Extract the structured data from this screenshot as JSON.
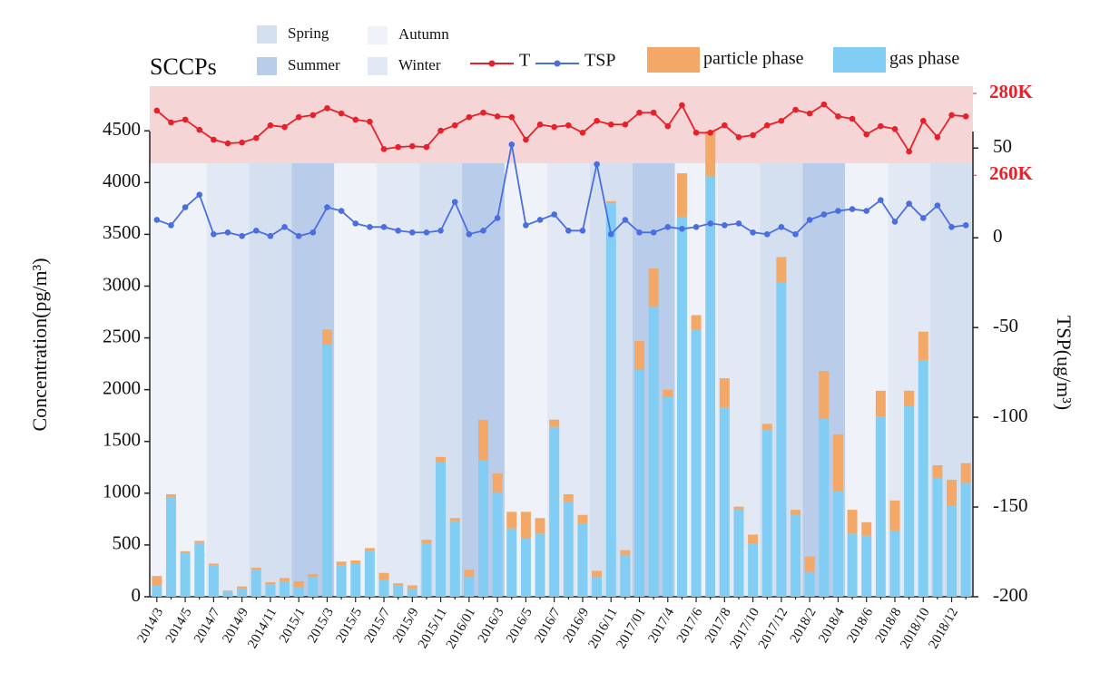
{
  "chart_data": {
    "type": "bar",
    "title": "SCCPs",
    "y_label": "Concentration(pg/m³)",
    "y2_label": "TSP(ug/m³)",
    "categories": [
      "2014/3",
      null,
      "2014/5",
      null,
      "2014/7",
      null,
      "2014/9",
      null,
      "2014/11",
      null,
      "2015/1",
      null,
      "2015/3",
      null,
      "2015/5",
      null,
      "2015/7",
      null,
      "2015/9",
      null,
      "2015/11",
      null,
      "2016/01",
      null,
      "2016/3",
      null,
      "2016/5",
      null,
      "2016/7",
      null,
      "2016/9",
      null,
      "2016/11",
      null,
      "2017/01",
      null,
      "2017/4",
      null,
      "2017/6",
      null,
      "2017/8",
      null,
      "2017/10",
      null,
      "2017/12",
      null,
      "2018/2",
      null,
      "2018/4",
      null,
      "2018/6",
      null,
      "2018/8",
      null,
      "2018/10",
      null,
      "2018/12",
      null
    ],
    "series": [
      {
        "name": "T",
        "type": "line",
        "axis": "y3",
        "color": "#e8202a",
        "values": [
          275.8,
          272.9,
          273.6,
          271.1,
          268.7,
          267.8,
          268.0,
          269.1,
          272.2,
          271.8,
          274.2,
          274.7,
          276.4,
          275.1,
          273.6,
          273.1,
          266.4,
          266.9,
          267.1,
          266.9,
          270.9,
          272.2,
          274.2,
          275.3,
          274.4,
          274.2,
          268.7,
          272.4,
          271.8,
          272.2,
          270.4,
          273.3,
          272.4,
          272.4,
          275.3,
          275.3,
          272.0,
          277.1,
          270.4,
          270.4,
          272.2,
          269.3,
          269.8,
          272.2,
          273.3,
          276.0,
          275.1,
          277.3,
          274.4,
          273.8,
          270.0,
          272.0,
          271.3,
          265.8,
          273.3,
          269.3,
          274.7,
          274.4
        ]
      },
      {
        "name": "TSP",
        "type": "line",
        "axis": "y2",
        "color": "#4a6ee0",
        "values": [
          10,
          7,
          17,
          24,
          2,
          3,
          1,
          4,
          1,
          6,
          1,
          3,
          17,
          15,
          8,
          6,
          6,
          4,
          3,
          3,
          4,
          20,
          2,
          4,
          11,
          52,
          7,
          10,
          13,
          4,
          4,
          41,
          2,
          10,
          3,
          3,
          6,
          5,
          6,
          8,
          7,
          8,
          3,
          2,
          6,
          2,
          10,
          13,
          15,
          16,
          15,
          21,
          9,
          19,
          11,
          18,
          6,
          7
        ]
      },
      {
        "name": "particle phase",
        "type": "bar",
        "color": "#f3a867",
        "values": [
          90,
          30,
          20,
          20,
          20,
          10,
          20,
          20,
          20,
          30,
          60,
          30,
          140,
          40,
          30,
          30,
          70,
          20,
          30,
          40,
          50,
          30,
          70,
          390,
          180,
          160,
          260,
          150,
          70,
          70,
          80,
          60,
          20,
          50,
          280,
          370,
          70,
          420,
          140,
          440,
          280,
          30,
          90,
          60,
          240,
          50,
          150,
          460,
          550,
          230,
          130,
          250,
          290,
          150,
          280,
          120,
          250,
          190
        ]
      },
      {
        "name": "gas phase",
        "type": "bar",
        "color": "#82cdf3",
        "values": [
          110,
          960,
          420,
          520,
          300,
          50,
          80,
          260,
          120,
          150,
          90,
          190,
          2440,
          300,
          320,
          440,
          160,
          110,
          80,
          510,
          1300,
          730,
          190,
          1320,
          1010,
          660,
          560,
          610,
          1640,
          920,
          710,
          190,
          3800,
          400,
          2190,
          2800,
          1930,
          3670,
          2580,
          4060,
          1830,
          840,
          510,
          1610,
          3040,
          790,
          240,
          1720,
          1020,
          610,
          590,
          1740,
          640,
          1840,
          2280,
          1150,
          880,
          1100
        ]
      }
    ],
    "seasons": [
      {
        "name": "Spring",
        "color": "#d4e0f0"
      },
      {
        "name": "Summer",
        "color": "#b9cdea"
      },
      {
        "name": "Autumn",
        "color": "#eff3f9"
      },
      {
        "name": "Winter",
        "color": "#e2e9f4"
      }
    ],
    "season_periods": [
      {
        "season": 2,
        "start": 0,
        "end": 4
      },
      {
        "season": 3,
        "start": 4,
        "end": 7
      },
      {
        "season": 0,
        "start": 7,
        "end": 10
      },
      {
        "season": 1,
        "start": 10,
        "end": 13
      },
      {
        "season": 2,
        "start": 13,
        "end": 16
      },
      {
        "season": 3,
        "start": 16,
        "end": 19
      },
      {
        "season": 0,
        "start": 19,
        "end": 22
      },
      {
        "season": 1,
        "start": 22,
        "end": 25
      },
      {
        "season": 2,
        "start": 25,
        "end": 28
      },
      {
        "season": 3,
        "start": 28,
        "end": 31
      },
      {
        "season": 0,
        "start": 31,
        "end": 34
      },
      {
        "season": 1,
        "start": 34,
        "end": 37
      },
      {
        "season": 2,
        "start": 37,
        "end": 40
      },
      {
        "season": 3,
        "start": 40,
        "end": 43
      },
      {
        "season": 0,
        "start": 43,
        "end": 46
      },
      {
        "season": 1,
        "start": 46,
        "end": 49
      },
      {
        "season": 2,
        "start": 49,
        "end": 52
      },
      {
        "season": 3,
        "start": 52,
        "end": 55
      },
      {
        "season": 0,
        "start": 55,
        "end": 58
      }
    ],
    "ylim": [
      0,
      4940
    ],
    "yticks": [
      0,
      500,
      1000,
      1500,
      2000,
      2500,
      3000,
      3500,
      4000,
      4500
    ],
    "y2lim": [
      -200,
      85
    ],
    "y2ticks": [
      -200,
      -150,
      -100,
      -50,
      0,
      50
    ],
    "y3lim": [
      157,
      282
    ],
    "y3ticks": [
      {
        "value": 280,
        "label": "280K"
      },
      {
        "value": 260,
        "label": "260K"
      }
    ],
    "y3_color": "#e8202a"
  }
}
